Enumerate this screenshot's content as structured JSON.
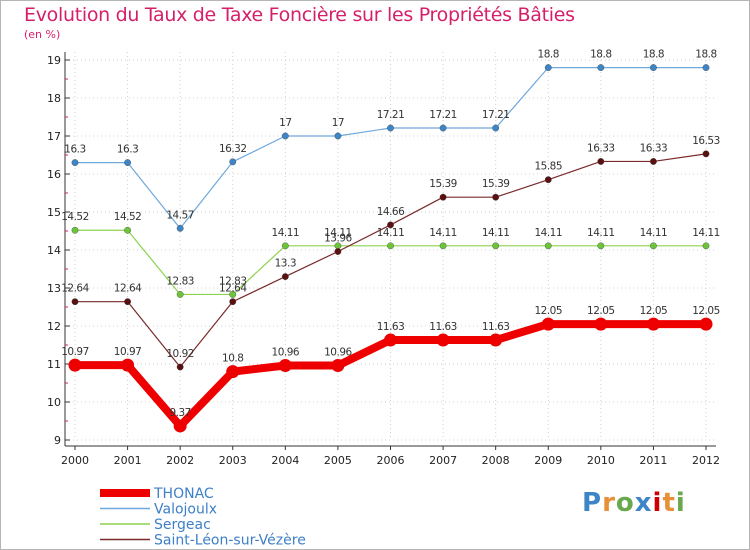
{
  "chart_data": {
    "type": "line",
    "title": "Evolution du Taux de Taxe Foncière sur les Propriétés Bâties",
    "ylabel": "(en %)",
    "xlabel": "",
    "x": [
      "2000",
      "2001",
      "2002",
      "2003",
      "2004",
      "2005",
      "2006",
      "2007",
      "2008",
      "2009",
      "2010",
      "2011",
      "2012"
    ],
    "ylim": [
      9,
      19
    ],
    "yticks": [
      9,
      10,
      11,
      12,
      13,
      14,
      15,
      16,
      17,
      18,
      19
    ],
    "series": [
      {
        "name": "THONAC",
        "color": "#ee0000",
        "point_color": "#ee0000",
        "width": 8,
        "values": [
          10.97,
          10.97,
          9.37,
          10.8,
          10.96,
          10.96,
          11.63,
          11.63,
          11.63,
          12.05,
          12.05,
          12.05,
          12.05
        ],
        "labels": [
          "10.97",
          "10.97",
          "9.37",
          "10.8",
          "10.96",
          "10.96",
          "11.63",
          "11.63",
          "11.63",
          "12.05",
          "12.05",
          "12.05",
          "12.05"
        ]
      },
      {
        "name": "Valojoulx",
        "color": "#6fa8dc",
        "point_color": "#3d85c6",
        "width": 1.2,
        "values": [
          16.3,
          16.3,
          14.57,
          16.32,
          17,
          17,
          17.21,
          17.21,
          17.21,
          18.8,
          18.8,
          18.8,
          18.8
        ],
        "labels": [
          "16.3",
          "16.3",
          "14.57",
          "16.32",
          "17",
          "17",
          "17.21",
          "17.21",
          "17.21",
          "18.8",
          "18.8",
          "18.8",
          "18.8"
        ]
      },
      {
        "name": "Sergeac",
        "color": "#8fd14f",
        "point_color": "#6cc43a",
        "width": 1.2,
        "values": [
          14.52,
          14.52,
          12.83,
          12.83,
          14.11,
          14.11,
          14.11,
          14.11,
          14.11,
          14.11,
          14.11,
          14.11,
          14.11
        ],
        "labels": [
          "14.52",
          "14.52",
          "12.83",
          "12.83",
          "14.11",
          "14.11",
          "14.11",
          "14.11",
          "14.11",
          "14.11",
          "14.11",
          "14.11",
          "14.11"
        ]
      },
      {
        "name": "Saint-Léon-sur-Vézère",
        "color": "#7b2a2a",
        "point_color": "#5a1010",
        "width": 1.2,
        "values": [
          12.64,
          12.64,
          10.92,
          12.64,
          13.3,
          13.96,
          14.66,
          15.39,
          15.39,
          15.85,
          16.33,
          16.33,
          16.53
        ],
        "labels": [
          "12.64",
          "12.64",
          "10.92",
          "12.64",
          "13.3",
          "13.96",
          "14.66",
          "15.39",
          "15.39",
          "15.85",
          "16.33",
          "16.33",
          "16.53"
        ]
      }
    ]
  },
  "brand": {
    "letters": [
      "P",
      "r",
      "o",
      "x",
      "i",
      "t",
      "i"
    ],
    "colors": [
      "#3d85c6",
      "#e69138",
      "#6aa84f",
      "#3d85c6",
      "#cc0000",
      "#e69138",
      "#6aa84f"
    ]
  }
}
